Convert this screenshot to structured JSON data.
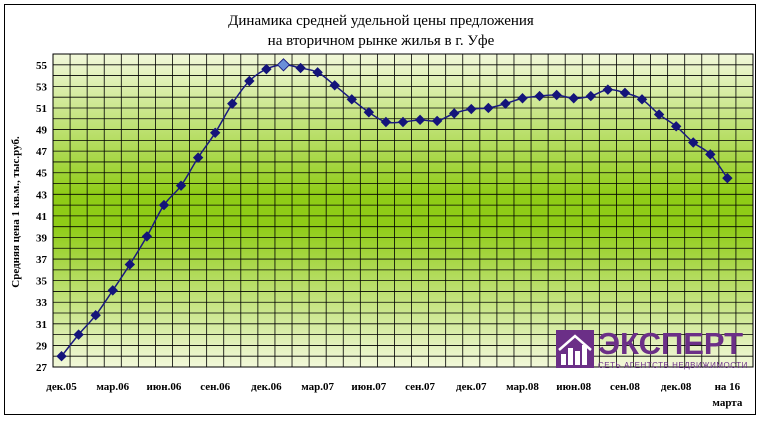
{
  "chart_data": {
    "type": "line",
    "title": [
      "Динамика средней удельной цены предложения",
      "на вторичном рынке жилья в г. Уфе"
    ],
    "ylabel": "Средняя цена 1 кв.м., тыс.руб.",
    "xlabel": "",
    "ylim": [
      27,
      56
    ],
    "yticks": [
      27,
      29,
      31,
      33,
      35,
      37,
      39,
      41,
      43,
      45,
      47,
      49,
      51,
      53,
      55
    ],
    "xtick_labels": [
      "дек.05",
      "мар.06",
      "июн.06",
      "сен.06",
      "дек.06",
      "мар.07",
      "июн.07",
      "сен.07",
      "дек.07",
      "мар.08",
      "июн.08",
      "сен.08",
      "дек.08",
      "на 16 марта"
    ],
    "grid": true,
    "legend": "none",
    "highlight_index": 13,
    "colors": {
      "line": "#1a1a80",
      "marker": "#14147a",
      "highlight": "#6a8fd8"
    },
    "values": [
      28.0,
      30.0,
      31.8,
      34.1,
      36.5,
      39.1,
      42.0,
      43.8,
      46.4,
      48.7,
      51.4,
      53.5,
      54.6,
      55.0,
      54.7,
      54.3,
      53.1,
      51.8,
      50.6,
      49.7,
      49.7,
      49.9,
      49.8,
      50.5,
      50.9,
      51.0,
      51.4,
      51.9,
      52.1,
      52.2,
      51.9,
      52.1,
      52.7,
      52.4,
      51.8,
      50.4,
      49.3,
      47.8,
      46.7,
      44.5
    ]
  },
  "logo": {
    "word": "ЭКСПЕРТ",
    "sub": "СЕТЬ АГЕНТСТВ НЕДВИЖИМОСТИ"
  }
}
